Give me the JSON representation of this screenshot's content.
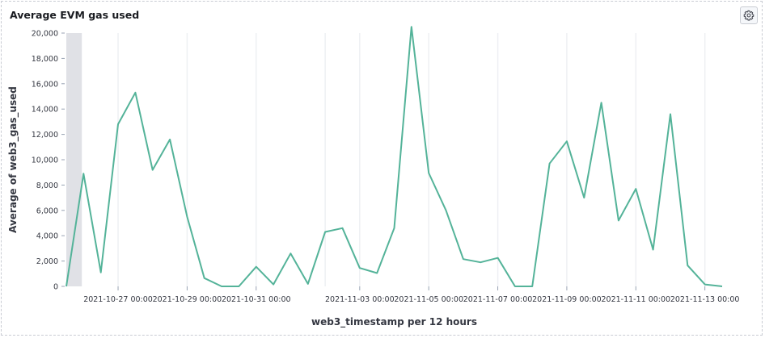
{
  "panel": {
    "title": "Average EVM gas used",
    "settings_icon": "gear-icon"
  },
  "colors": {
    "line": "#54b399",
    "grid": "#eef0f3",
    "text": "#343741",
    "highlight": "#e0e1e6"
  },
  "chart_data": {
    "type": "line",
    "xlabel": "web3_timestamp per 12 hours",
    "ylabel": "Average of web3_gas_used",
    "ylim": [
      0,
      20000
    ],
    "y_ticks": [
      0,
      2000,
      4000,
      6000,
      8000,
      10000,
      12000,
      14000,
      16000,
      18000,
      20000
    ],
    "y_tick_labels": [
      "0",
      "2,000",
      "4,000",
      "6,000",
      "8,000",
      "10,000",
      "12,000",
      "14,000",
      "16,000",
      "18,000",
      "20,000"
    ],
    "x_tick_labels": [
      {
        "label": "2021-10-27 00:00",
        "index": 3
      },
      {
        "label": "2021-10-29 00:00",
        "index": 7
      },
      {
        "label": "2021-10-31 00:00",
        "index": 11
      },
      {
        "label": "2021-11-03 00:00",
        "index": 17
      },
      {
        "label": "2021-11-05 00:00",
        "index": 21
      },
      {
        "label": "2021-11-07 00:00",
        "index": 25
      },
      {
        "label": "2021-11-09 00:00",
        "index": 29
      },
      {
        "label": "2021-11-11 00:00",
        "index": 33
      },
      {
        "label": "2021-11-13 00:00",
        "index": 37
      }
    ],
    "x_grid_indices": [
      3,
      7,
      11,
      15,
      17,
      21,
      25,
      29,
      33,
      37
    ],
    "grid": true,
    "highlight_band": [
      0,
      0.9
    ],
    "series": [
      {
        "values": [
          0,
          8900,
          1100,
          12800,
          15300,
          9200,
          11600,
          5500,
          650,
          0,
          0,
          1550,
          150,
          2600,
          200,
          4300,
          4600,
          1450,
          1050,
          4600,
          20500,
          8950,
          6000,
          2150,
          1900,
          2250,
          0,
          0,
          9700,
          11450,
          7000,
          14500,
          5200,
          7700,
          2900,
          13600,
          1650,
          150,
          0
        ]
      }
    ]
  }
}
